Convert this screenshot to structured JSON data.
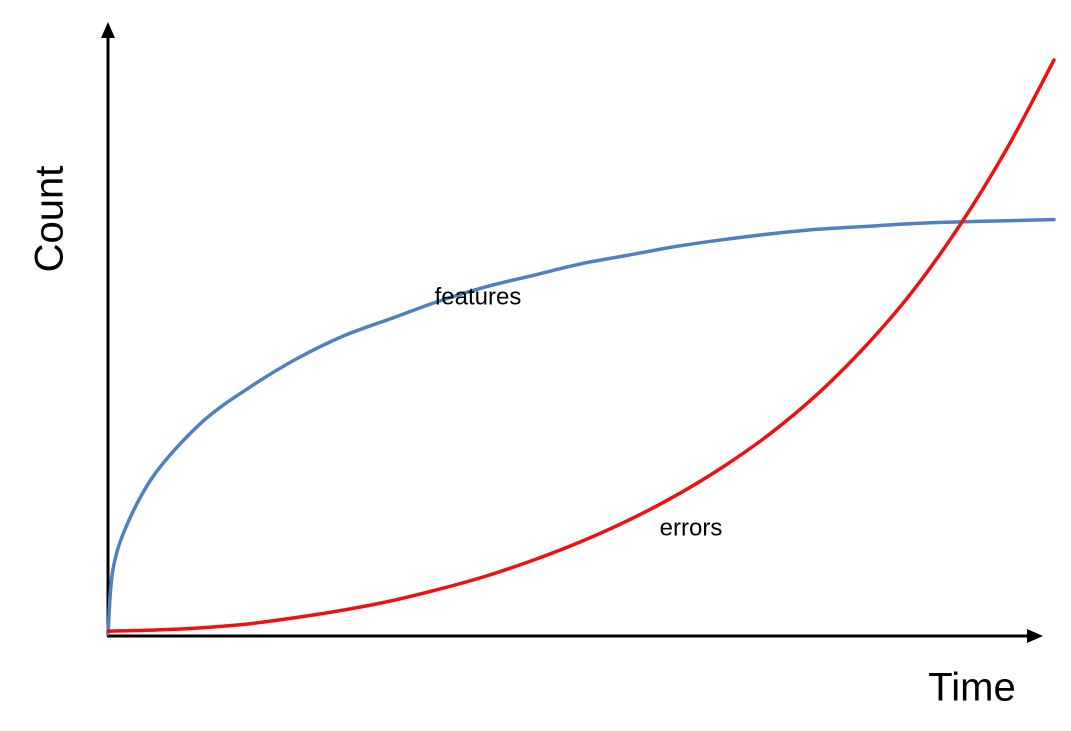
{
  "chart_data": {
    "type": "line",
    "title": "",
    "xlabel": "Time",
    "ylabel": "Count",
    "xlim": [
      0,
      1
    ],
    "ylim": [
      0,
      1
    ],
    "grid": false,
    "ticks": false,
    "series": [
      {
        "name": "features",
        "label": "features",
        "color": "#4f81bd",
        "x": [
          0,
          0.005,
          0.02,
          0.05,
          0.1,
          0.15,
          0.2,
          0.25,
          0.3,
          0.35,
          0.4,
          0.45,
          0.5,
          0.55,
          0.6,
          0.65,
          0.7,
          0.75,
          0.8,
          0.85,
          0.9,
          0.95,
          1.0
        ],
        "y": [
          0,
          0.11,
          0.19,
          0.28,
          0.37,
          0.43,
          0.48,
          0.52,
          0.55,
          0.58,
          0.605,
          0.625,
          0.645,
          0.66,
          0.675,
          0.687,
          0.697,
          0.705,
          0.71,
          0.715,
          0.718,
          0.72,
          0.722
        ]
      },
      {
        "name": "errors",
        "label": "errors",
        "color": "#ee1111",
        "x": [
          0,
          0.05,
          0.1,
          0.15,
          0.2,
          0.25,
          0.3,
          0.35,
          0.4,
          0.45,
          0.5,
          0.55,
          0.6,
          0.65,
          0.7,
          0.75,
          0.8,
          0.85,
          0.9,
          0.95,
          1.0
        ],
        "y": [
          0.005,
          0.007,
          0.011,
          0.018,
          0.029,
          0.042,
          0.058,
          0.078,
          0.101,
          0.129,
          0.161,
          0.198,
          0.241,
          0.291,
          0.349,
          0.418,
          0.5,
          0.596,
          0.711,
          0.845,
          1.0
        ]
      }
    ]
  }
}
